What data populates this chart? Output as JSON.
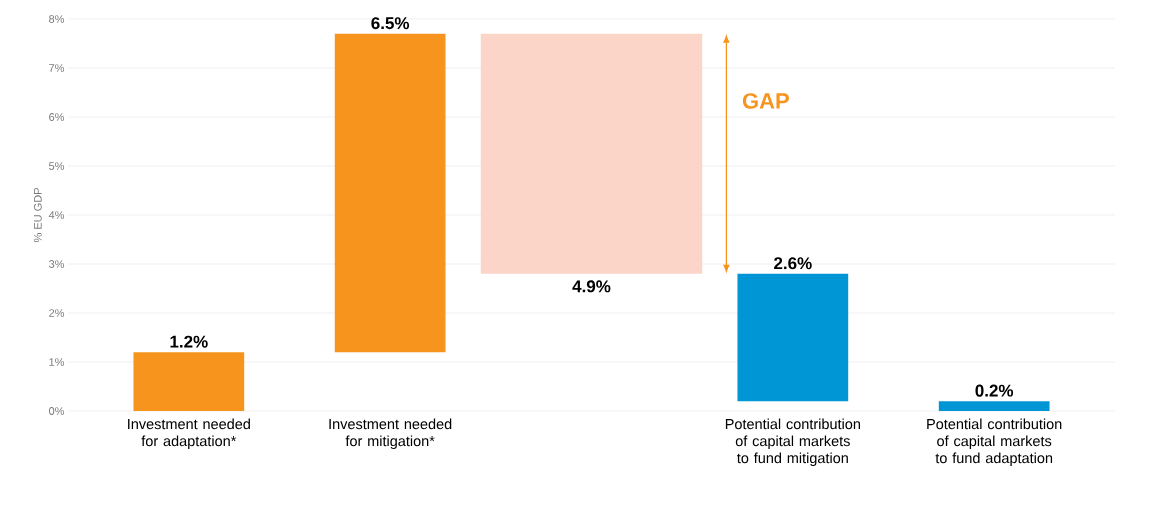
{
  "chart_data": {
    "type": "bar",
    "ylabel": "% EU GDP",
    "categories": [
      "Investment needed for adaptation*",
      "Investment needed for mitigation*",
      null,
      "Potential contribution of capital markets to fund mitigation",
      "Potential contribution of capital markets to fund adaptation"
    ],
    "values": [
      1.2,
      6.5,
      4.9,
      2.6,
      0.2
    ],
    "base": [
      0,
      1.2,
      2.8,
      0.2,
      0
    ],
    "colors": [
      "#f7941d",
      "#f7941d",
      "#fbd6c8",
      "#0096d6",
      "#0096d6"
    ],
    "value_labels": [
      "1.2%",
      "6.5%",
      "4.9%",
      "2.6%",
      "0.2%"
    ],
    "annotations": [
      "GAP"
    ],
    "ylim": [
      0,
      8
    ],
    "yticks": [
      {
        "value": 0,
        "label": "0%"
      },
      {
        "value": 1,
        "label": "1%"
      },
      {
        "value": 2,
        "label": "2%"
      },
      {
        "value": 3,
        "label": "3%"
      },
      {
        "value": 4,
        "label": "4%"
      },
      {
        "value": 5,
        "label": "5%"
      },
      {
        "value": 6,
        "label": "6%"
      },
      {
        "value": 7,
        "label": "7%"
      },
      {
        "value": 8,
        "label": "8%"
      }
    ],
    "grid": "y"
  }
}
